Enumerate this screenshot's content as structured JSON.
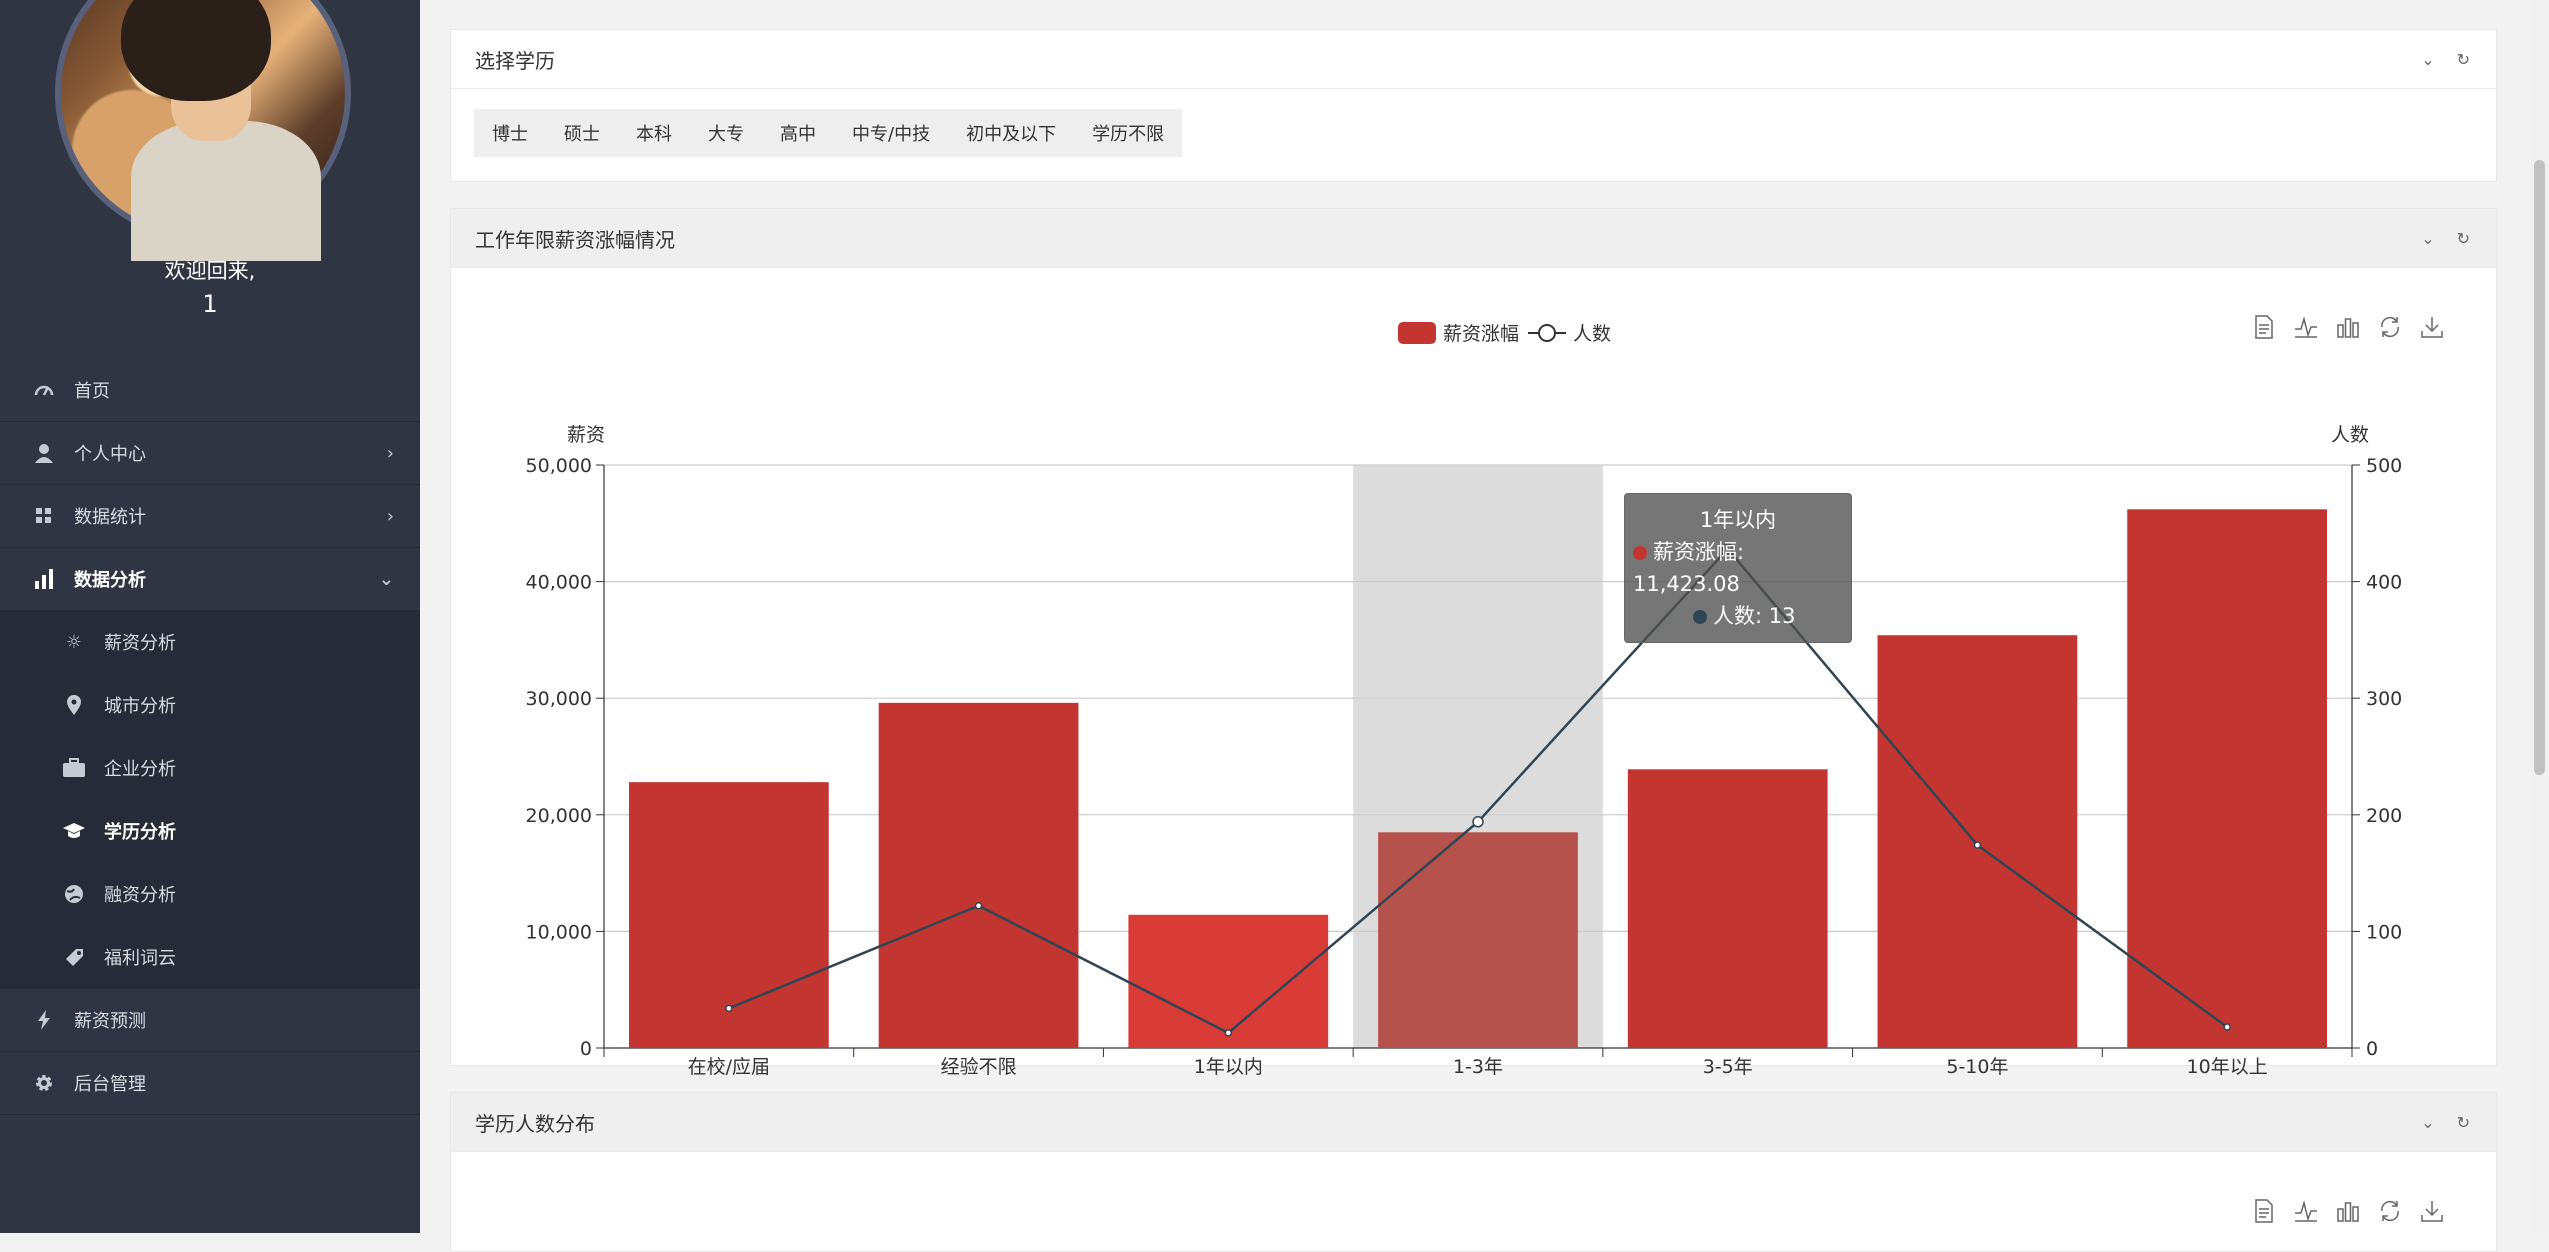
{
  "sidebar": {
    "welcome": "欢迎回来,",
    "username": "1",
    "items": [
      {
        "label": "首页",
        "icon": "dashboard-icon"
      },
      {
        "label": "个人中心",
        "icon": "user-icon"
      },
      {
        "label": "数据统计",
        "icon": "grid-icon"
      },
      {
        "label": "数据分析",
        "icon": "bar-chart-icon"
      },
      {
        "label": "薪资分析",
        "icon": "sun-icon"
      },
      {
        "label": "城市分析",
        "icon": "location-pin-icon"
      },
      {
        "label": "企业分析",
        "icon": "briefcase-icon"
      },
      {
        "label": "学历分析",
        "icon": "graduation-cap-icon"
      },
      {
        "label": "融资分析",
        "icon": "globe-icon"
      },
      {
        "label": "福利词云",
        "icon": "tag-icon"
      },
      {
        "label": "薪资预测",
        "icon": "bolt-icon"
      },
      {
        "label": "后台管理",
        "icon": "gear-icon"
      }
    ]
  },
  "panels": {
    "education_select": {
      "title": "选择学历",
      "options": [
        "博士",
        "硕士",
        "本科",
        "大专",
        "高中",
        "中专/中技",
        "初中及以下",
        "学历不限"
      ]
    },
    "salary_growth": {
      "title": "工作年限薪资涨幅情况"
    },
    "education_distribution": {
      "title": "学历人数分布"
    }
  },
  "chart_data": {
    "type": "bar",
    "categories": [
      "在校/应届",
      "经验不限",
      "1年以内",
      "1-3年",
      "3-5年",
      "5-10年",
      "10年以上"
    ],
    "series": [
      {
        "name": "薪资涨幅",
        "type": "bar",
        "values": [
          22800,
          29600,
          11423.08,
          18500,
          23900,
          35400,
          46200
        ],
        "color": "#c23531"
      },
      {
        "name": "人数",
        "type": "line",
        "values": [
          34,
          122,
          13,
          194,
          428,
          174,
          18
        ],
        "color": "#2f4554"
      }
    ],
    "ylabel": "薪资",
    "y2label": "人数",
    "ylim": [
      0,
      50000
    ],
    "y2lim": [
      0,
      500
    ],
    "yticks": [
      "0",
      "10,000",
      "20,000",
      "30,000",
      "40,000",
      "50,000"
    ],
    "y2ticks": [
      "0",
      "100",
      "200",
      "300",
      "400",
      "500"
    ],
    "legend": "top-center",
    "highlighted_category": "1-3年",
    "tooltip": {
      "title": "1年以内",
      "bar_text": "薪资涨幅: 11,423.08",
      "line_text": "人数: 13"
    }
  },
  "colors": {
    "sidebar_bg": "#2f3542",
    "bar": "#c23531",
    "line": "#2f4554"
  }
}
